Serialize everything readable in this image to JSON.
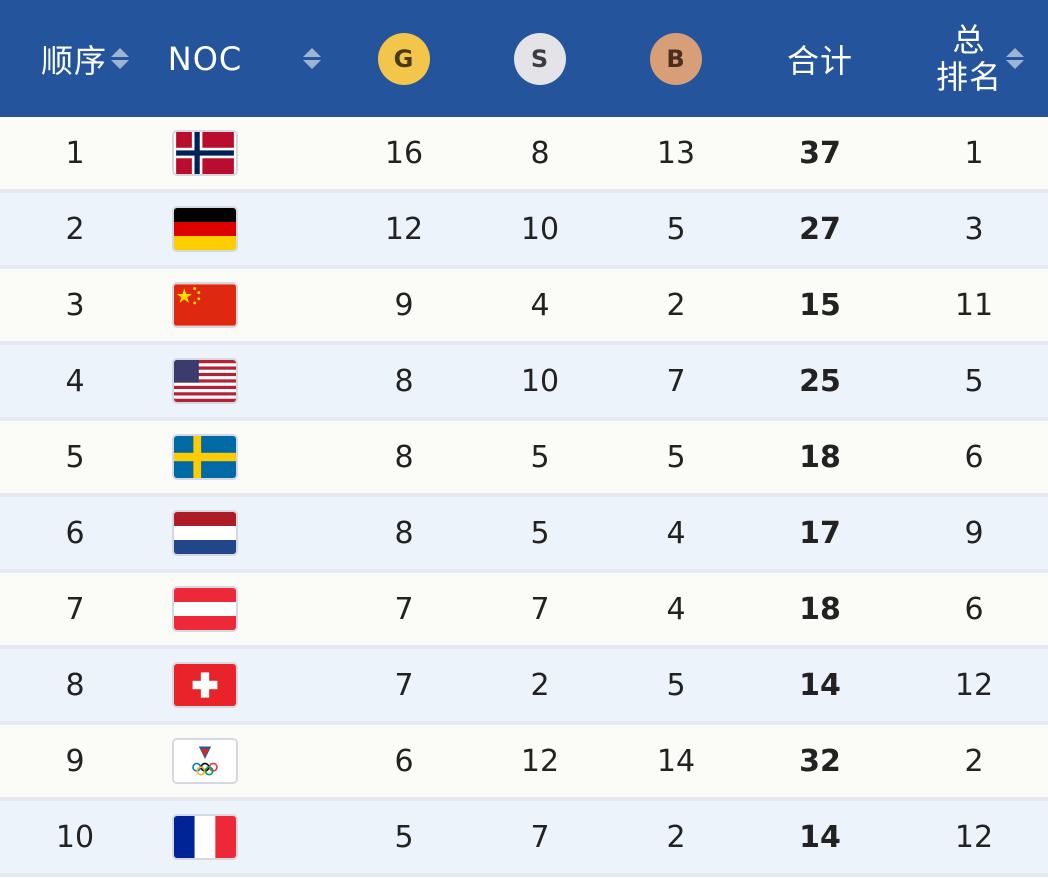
{
  "header": {
    "order": "顺序",
    "noc": "NOC",
    "gold": "G",
    "silver": "S",
    "bronze": "B",
    "total": "合计",
    "overall_rank_line1": "总",
    "overall_rank_line2": "排名"
  },
  "rows": [
    {
      "order": "1",
      "flag": "norway-flag-icon",
      "gold": "16",
      "silver": "8",
      "bronze": "13",
      "total": "37",
      "rank": "1"
    },
    {
      "order": "2",
      "flag": "germany-flag-icon",
      "gold": "12",
      "silver": "10",
      "bronze": "5",
      "total": "27",
      "rank": "3"
    },
    {
      "order": "3",
      "flag": "china-flag-icon",
      "gold": "9",
      "silver": "4",
      "bronze": "2",
      "total": "15",
      "rank": "11"
    },
    {
      "order": "4",
      "flag": "usa-flag-icon",
      "gold": "8",
      "silver": "10",
      "bronze": "7",
      "total": "25",
      "rank": "5"
    },
    {
      "order": "5",
      "flag": "sweden-flag-icon",
      "gold": "8",
      "silver": "5",
      "bronze": "5",
      "total": "18",
      "rank": "6"
    },
    {
      "order": "6",
      "flag": "netherlands-flag-icon",
      "gold": "8",
      "silver": "5",
      "bronze": "4",
      "total": "17",
      "rank": "9"
    },
    {
      "order": "7",
      "flag": "austria-flag-icon",
      "gold": "7",
      "silver": "7",
      "bronze": "4",
      "total": "18",
      "rank": "6"
    },
    {
      "order": "8",
      "flag": "switzerland-flag-icon",
      "gold": "7",
      "silver": "2",
      "bronze": "5",
      "total": "14",
      "rank": "12"
    },
    {
      "order": "9",
      "flag": "roc-flag-icon",
      "gold": "6",
      "silver": "12",
      "bronze": "14",
      "total": "32",
      "rank": "2"
    },
    {
      "order": "10",
      "flag": "france-flag-icon",
      "gold": "5",
      "silver": "7",
      "bronze": "2",
      "total": "14",
      "rank": "12"
    }
  ],
  "colors": {
    "header_bg": "#24549c",
    "gold": "#f3c54a",
    "silver": "#e4e4e8",
    "bronze": "#d89e78"
  }
}
